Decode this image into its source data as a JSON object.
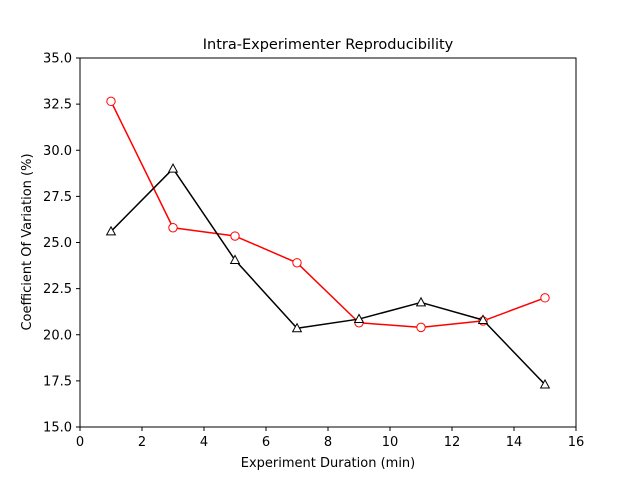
{
  "chart_data": {
    "type": "line",
    "title": "Intra-Experimenter Reproducibility",
    "xlabel": "Experiment Duration (min)",
    "ylabel": "Coefficient Of Variation (%)",
    "xlim": [
      0,
      16
    ],
    "ylim": [
      15.0,
      35.0
    ],
    "xticks": [
      0,
      2,
      4,
      6,
      8,
      10,
      12,
      14,
      16
    ],
    "xtick_labels": [
      "0",
      "2",
      "4",
      "6",
      "8",
      "10",
      "12",
      "14",
      "16"
    ],
    "yticks": [
      15.0,
      17.5,
      20.0,
      22.5,
      25.0,
      27.5,
      30.0,
      32.5,
      35.0
    ],
    "ytick_labels": [
      "15.0",
      "17.5",
      "20.0",
      "22.5",
      "25.0",
      "27.5",
      "30.0",
      "32.5",
      "35.0"
    ],
    "grid": false,
    "legend": false,
    "x": [
      1,
      3,
      5,
      7,
      9,
      11,
      13,
      15
    ],
    "series": [
      {
        "color": "#ff0000",
        "marker": "circle",
        "values": [
          32.65,
          25.8,
          25.35,
          23.9,
          20.65,
          20.4,
          20.75,
          22.0
        ]
      },
      {
        "color": "#000000",
        "marker": "triangle",
        "values": [
          25.6,
          29.0,
          24.05,
          20.35,
          20.85,
          21.75,
          20.8,
          17.3
        ]
      }
    ]
  }
}
